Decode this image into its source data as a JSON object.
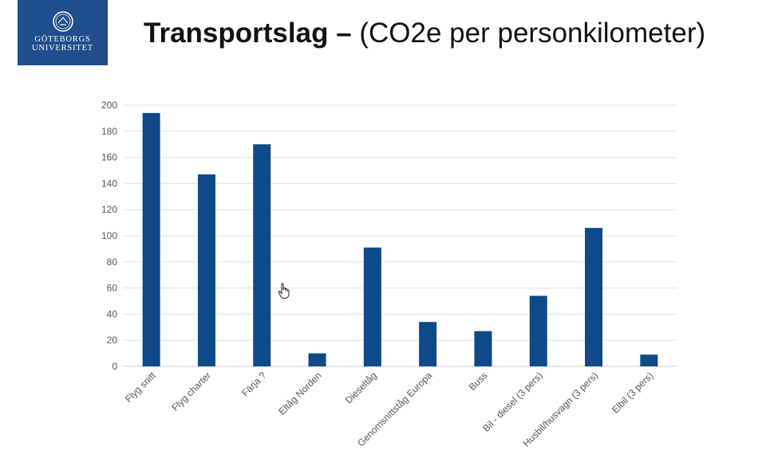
{
  "logo": {
    "line1": "GÖTEBORGS",
    "line2": "UNIVERSITET"
  },
  "slide": {
    "title_bold": "Transportslag –",
    "title_rest": " (CO2e per personkilometer)"
  },
  "chart_data": {
    "type": "bar",
    "categories": [
      "Flyg snitt",
      "Flyg charter",
      "Färja ?",
      "Eltåg Norden",
      "Dieseltåg",
      "Genomsnittståg Europa",
      "Buss",
      "Bil - diesel (3 pers)",
      "Husbil/husvagn (3 pers)",
      "Elbil (3 pers)"
    ],
    "values": [
      194,
      147,
      170,
      10,
      91,
      34,
      27,
      54,
      106,
      9
    ],
    "yticks": [
      0,
      20,
      40,
      60,
      80,
      100,
      120,
      140,
      160,
      180,
      200
    ],
    "ylim": [
      0,
      200
    ],
    "grid": true,
    "bar_color": "#0d4a87"
  }
}
